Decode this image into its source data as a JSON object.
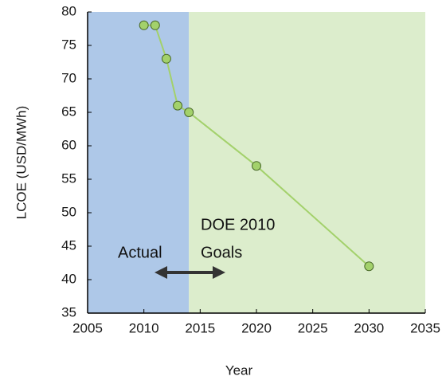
{
  "chart_data": {
    "type": "line",
    "x_label": "Year",
    "y_label": "LCOE (USD/MWh)",
    "x": [
      2010,
      2011,
      2012,
      2013,
      2014,
      2020,
      2030
    ],
    "series": [
      {
        "color": "#a3d16b",
        "values": [
          78,
          78,
          73,
          66,
          65,
          57,
          42
        ]
      }
    ],
    "xlim": [
      2005,
      2035
    ],
    "xticks": [
      2005,
      2010,
      2015,
      2020,
      2025,
      2030,
      2035
    ],
    "ylim": [
      35,
      80
    ],
    "yticks": [
      35,
      40,
      45,
      50,
      55,
      60,
      65,
      70,
      75,
      80
    ],
    "shaded_regions": [
      {
        "xrange": [
          2005,
          2014
        ],
        "color": "#aec8e8"
      },
      {
        "xrange": [
          2014,
          2035
        ],
        "color": "#dcedcc"
      }
    ],
    "annotations": [
      "Actual",
      "DOE 2010",
      "Goals"
    ]
  }
}
